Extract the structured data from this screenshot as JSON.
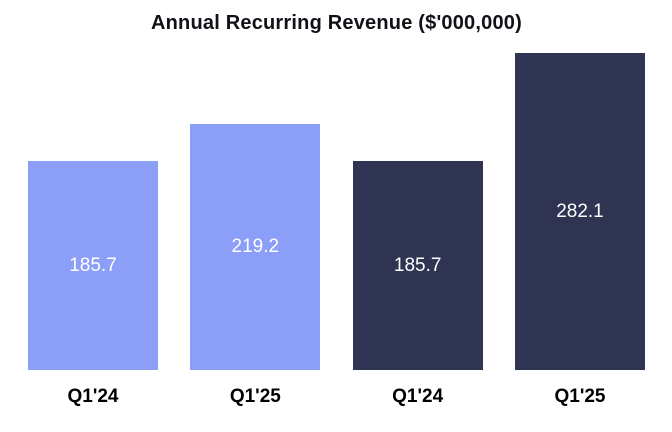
{
  "chart_data": {
    "type": "bar",
    "title": "Annual Recurring Revenue ($'000,000)",
    "categories": [
      "Q1'24",
      "Q1'25",
      "Q1'24",
      "Q1'25"
    ],
    "values": [
      185.7,
      219.2,
      185.7,
      282.1
    ],
    "value_labels": [
      "185.7",
      "219.2",
      "185.7",
      "282.1"
    ],
    "bar_colors": [
      "#8c9ff8",
      "#8c9ff8",
      "#2e3451",
      "#2e3451"
    ],
    "value_label_color": "#ffffff",
    "background_color": "#ffffff",
    "ylim": [
      0,
      282.1
    ],
    "grid": false,
    "legend_position": "none",
    "xlabel": "",
    "ylabel": ""
  }
}
